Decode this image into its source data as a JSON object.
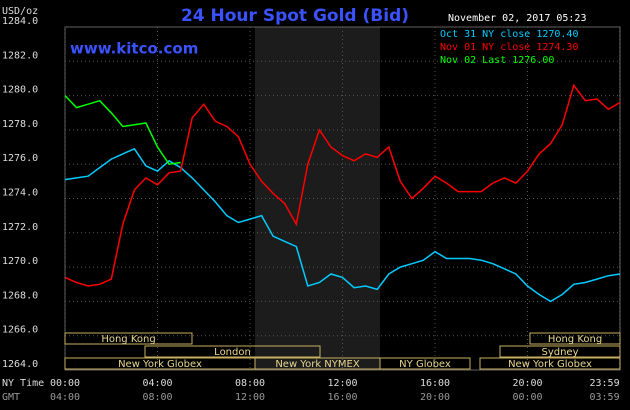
{
  "chart_data": {
    "type": "line",
    "title": "24 Hour Spot Gold (Bid)",
    "subtitle": "www.kitco.com",
    "y_label": "USD/oz",
    "date": "November 02, 2017 05:23",
    "x_label": "NY Time",
    "x2_label": "GMT",
    "x": [
      0,
      0.5,
      1,
      1.5,
      2,
      2.5,
      3,
      3.5,
      4,
      4.5,
      5,
      5.5,
      6,
      6.5,
      7,
      7.5,
      8,
      8.5,
      9,
      9.5,
      10,
      10.5,
      11,
      11.5,
      12,
      12.5,
      13,
      13.5,
      14,
      14.5,
      15,
      15.5,
      16,
      16.5,
      17,
      17.5,
      18,
      18.5,
      19,
      19.5,
      20,
      20.5,
      21,
      21.5,
      22,
      22.5,
      23,
      23.5,
      24
    ],
    "series": [
      {
        "name": "Oct 31 NY close 1270.40",
        "color": "#00ccff",
        "values": [
          1275.1,
          1275.2,
          1275.3,
          1275.8,
          1276.3,
          1276.6,
          1276.9,
          1275.9,
          1275.6,
          1276.2,
          1275.8,
          1275.2,
          1274.5,
          1273.8,
          1273.0,
          1272.6,
          1272.8,
          1273.0,
          1271.8,
          1271.5,
          1271.2,
          1268.9,
          1269.1,
          1269.6,
          1269.4,
          1268.8,
          1268.9,
          1268.7,
          1269.6,
          1270.0,
          1270.2,
          1270.4,
          1270.9,
          1270.5,
          1270.5,
          1270.5,
          1270.4,
          1270.2,
          1269.9,
          1269.6,
          1268.9,
          1268.4,
          1268.0,
          1268.4,
          1269.0,
          1269.1,
          1269.3,
          1269.5,
          1269.6
        ]
      },
      {
        "name": "Nov 01 NY close 1274.30",
        "color": "#ff0000",
        "values": [
          1269.4,
          1269.1,
          1268.9,
          1269.0,
          1269.3,
          1272.5,
          1274.5,
          1275.2,
          1274.8,
          1275.5,
          1275.6,
          1278.7,
          1279.5,
          1278.5,
          1278.2,
          1277.6,
          1276.0,
          1275.0,
          1274.3,
          1273.7,
          1272.5,
          1276.0,
          1278.0,
          1277.0,
          1276.5,
          1276.2,
          1276.6,
          1276.4,
          1277.0,
          1275.0,
          1274.0,
          1274.6,
          1275.3,
          1274.9,
          1274.4,
          1274.4,
          1274.4,
          1274.9,
          1275.2,
          1274.9,
          1275.6,
          1276.6,
          1277.2,
          1278.3,
          1280.6,
          1279.7,
          1279.8,
          1279.2,
          1279.6
        ]
      },
      {
        "name": "Nov 02 Last 1276.00",
        "color": "#00ff00",
        "values": [
          1280.0,
          1279.3,
          1279.5,
          1279.7,
          1279.0,
          1278.2,
          1278.3,
          1278.4,
          1277.0,
          1276.0,
          1276.1,
          null,
          null,
          null,
          null,
          null,
          null,
          null,
          null,
          null,
          null,
          null,
          null,
          null,
          null,
          null,
          null,
          null,
          null,
          null,
          null,
          null,
          null,
          null,
          null,
          null,
          null,
          null,
          null,
          null,
          null,
          null,
          null,
          null,
          null,
          null,
          null,
          null,
          null
        ]
      }
    ],
    "xlim": [
      0,
      24
    ],
    "xticks": [
      {
        "value": 0,
        "label": "00:00"
      },
      {
        "value": 4,
        "label": "04:00"
      },
      {
        "value": 8,
        "label": "08:00"
      },
      {
        "value": 12,
        "label": "12:00"
      },
      {
        "value": 16,
        "label": "16:00"
      },
      {
        "value": 20,
        "label": "20:00"
      },
      {
        "value": 23.983,
        "label": "23:59"
      }
    ],
    "x2ticks": [
      "04:00",
      "08:00",
      "12:00",
      "16:00",
      "20:00",
      "00:00",
      "03:59"
    ],
    "ylim": [
      1264,
      1284
    ],
    "yticks": [
      {
        "value": 1264,
        "label": "1264.0"
      },
      {
        "value": 1266,
        "label": "1266.0"
      },
      {
        "value": 1268,
        "label": "1268.0"
      },
      {
        "value": 1270,
        "label": "1270.0"
      },
      {
        "value": 1272,
        "label": "1272.0"
      },
      {
        "value": 1274,
        "label": "1274.0"
      },
      {
        "value": 1276,
        "label": "1276.0"
      },
      {
        "value": 1278,
        "label": "1278.0"
      },
      {
        "value": 1280,
        "label": "1280.0"
      },
      {
        "value": 1282,
        "label": "1282.0"
      },
      {
        "value": 1284,
        "label": "1284.0"
      }
    ],
    "grid": true,
    "sessions": [
      "Hong Kong",
      "London",
      "New York NYMEX",
      "NY Globex",
      "New York Globex",
      "Hong Kong",
      "Sydney",
      "New York Globex"
    ]
  }
}
